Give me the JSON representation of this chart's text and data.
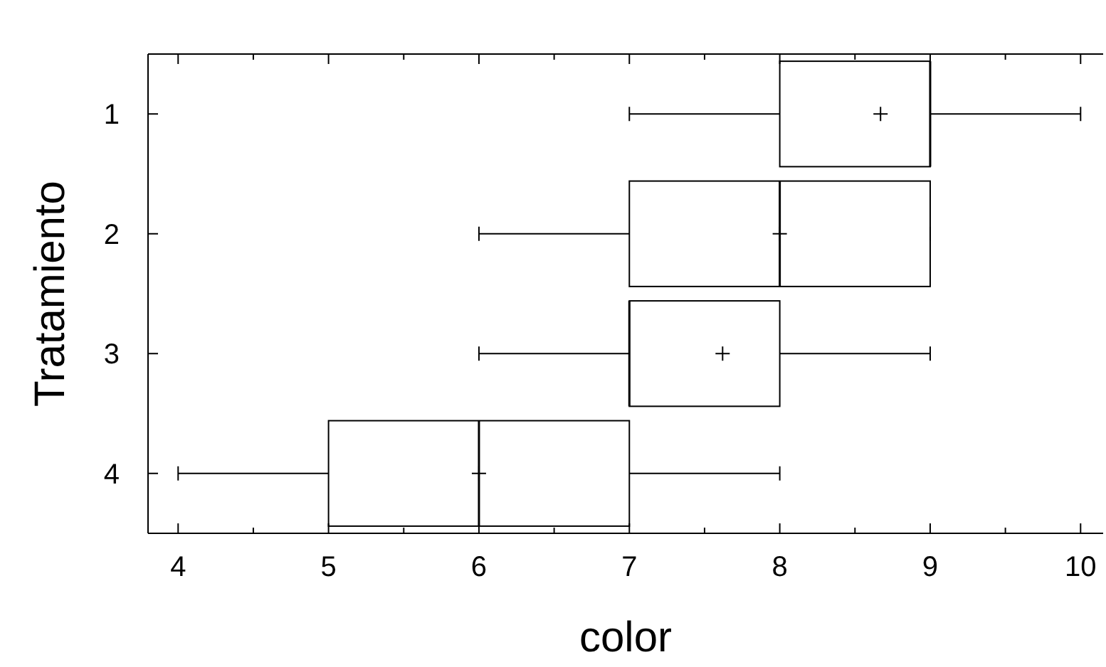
{
  "chart_data": {
    "type": "box",
    "orientation": "horizontal",
    "xlabel": "color",
    "ylabel": "Tratamiento",
    "categories": [
      "1",
      "2",
      "3",
      "4"
    ],
    "boxes": [
      {
        "low": 7,
        "q1": 8,
        "median": 9,
        "q3": 9,
        "high": 10,
        "mean": 8.67
      },
      {
        "low": 6,
        "q1": 7,
        "median": 8,
        "q3": 9,
        "high": 9,
        "mean": 8
      },
      {
        "low": 6,
        "q1": 7,
        "median": 7,
        "q3": 8,
        "high": 9,
        "mean": 7.62
      },
      {
        "low": 4,
        "q1": 5,
        "median": 6,
        "q3": 7,
        "high": 8,
        "mean": 6
      }
    ],
    "xlim": [
      3.8,
      10.15
    ],
    "xticks": [
      4,
      {
        "value": 4.5,
        "label": null
      },
      5,
      {
        "value": 5.5,
        "label": null
      },
      6,
      {
        "value": 6.5,
        "label": null
      },
      7,
      {
        "value": 7.5,
        "label": null
      },
      8,
      {
        "value": 8.5,
        "label": null
      },
      9,
      {
        "value": 9.5,
        "label": null
      },
      10
    ],
    "marker": "cross",
    "color": "#000000"
  }
}
